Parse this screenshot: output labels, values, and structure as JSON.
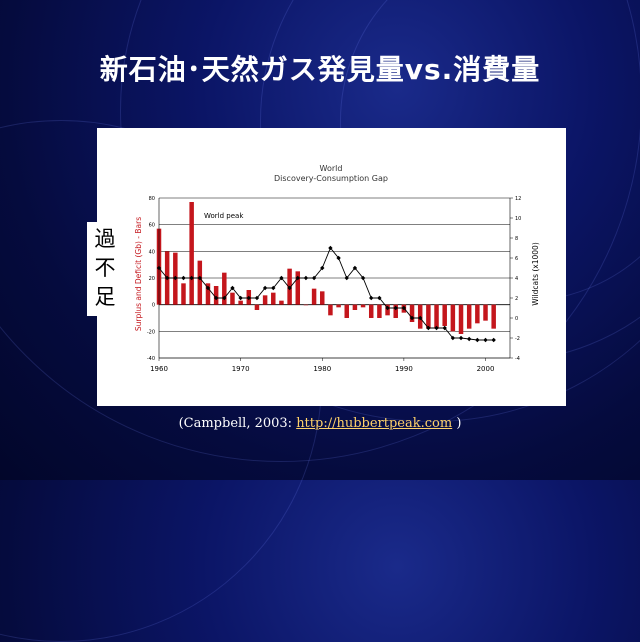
{
  "slide": {
    "title": "新石油･天然ガス発見量vs.消費量",
    "side_label_chars": [
      "過",
      "不",
      "足"
    ],
    "citation_prefix": "(Campbell, 2003: ",
    "citation_link": "http://hubbertpeak.com",
    "citation_suffix": " )"
  },
  "chart_data": {
    "type": "bar+line",
    "title": "World",
    "subtitle": "Discovery-Consumption Gap",
    "ylabel": "Surplus and Deficit (Gb) - Bars",
    "y2label": "Wildcats (x1000)",
    "annotation": "World peak",
    "ylim": [
      -40,
      80
    ],
    "y2lim": [
      -4,
      12
    ],
    "xlim": [
      1960,
      2003
    ],
    "xticks": [
      1960,
      1970,
      1980,
      1990,
      2000
    ],
    "yticks": [
      -40,
      -20,
      0,
      20,
      40,
      60,
      80
    ],
    "y2ticks": [
      -4,
      -2,
      0,
      2,
      4,
      6,
      8,
      10,
      12
    ],
    "grid": true,
    "bar_color": "#c4161c",
    "line_color": "#000000",
    "bars": {
      "x": [
        1960,
        1961,
        1962,
        1963,
        1964,
        1965,
        1966,
        1967,
        1968,
        1969,
        1970,
        1971,
        1972,
        1973,
        1974,
        1975,
        1976,
        1977,
        1978,
        1979,
        1980,
        1981,
        1982,
        1983,
        1984,
        1985,
        1986,
        1987,
        1988,
        1989,
        1990,
        1991,
        1992,
        1993,
        1994,
        1995,
        1996,
        1997,
        1998,
        1999,
        2000,
        2001
      ],
      "values": [
        57,
        40,
        39,
        16,
        77,
        33,
        16,
        14,
        24,
        9,
        3,
        11,
        -4,
        7,
        9,
        3,
        27,
        25,
        0,
        12,
        10,
        -8,
        -2,
        -10,
        -4,
        -2,
        -10,
        -10,
        -8,
        -10,
        -6,
        -13,
        -18,
        -18,
        -18,
        -16,
        -20,
        -22,
        -18,
        -14,
        -12,
        -18
      ]
    },
    "line": {
      "x": [
        1960,
        1961,
        1962,
        1963,
        1964,
        1965,
        1966,
        1967,
        1968,
        1969,
        1970,
        1971,
        1972,
        1973,
        1974,
        1975,
        1976,
        1977,
        1978,
        1979,
        1980,
        1981,
        1982,
        1983,
        1984,
        1985,
        1986,
        1987,
        1988,
        1989,
        1990,
        1991,
        1992,
        1993,
        1994,
        1995,
        1996,
        1997,
        1998,
        1999,
        2000,
        2001
      ],
      "values": [
        5,
        4,
        4,
        4,
        4,
        4,
        3,
        2,
        2,
        3,
        2,
        2,
        2,
        3,
        3,
        4,
        3,
        4,
        4,
        4,
        5,
        7,
        6,
        4,
        5,
        4,
        2,
        2,
        1,
        1,
        1,
        0,
        0,
        -1,
        -1,
        -1,
        -2,
        -2,
        -2.1,
        -2.2,
        -2.2,
        -2.2
      ]
    }
  }
}
